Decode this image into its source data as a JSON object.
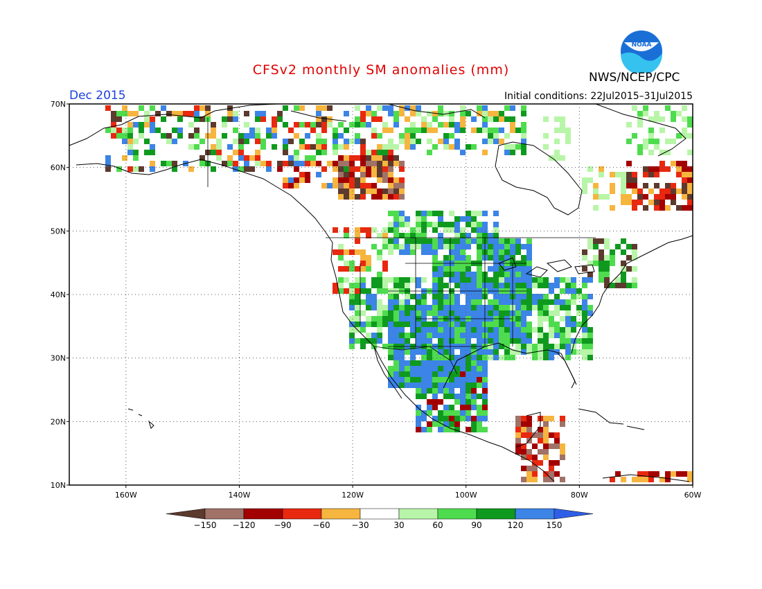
{
  "header": {
    "title": "CFSv2 monthly SM anomalies (mm)",
    "organization": "NWS/NCEP/CPC",
    "period": "Dec 2015",
    "initial_conditions": "Initial conditions: 22Jul2015–31Jul2015",
    "logo_text": "NOAA"
  },
  "map": {
    "lat_labels": [
      "70N",
      "60N",
      "50N",
      "40N",
      "30N",
      "20N",
      "10N"
    ],
    "lon_labels": [
      "160W",
      "140W",
      "120W",
      "100W",
      "80W",
      "60W"
    ],
    "lat_range": [
      10,
      70
    ],
    "lon_range": [
      -170,
      -60
    ],
    "grid": "dotted"
  },
  "colorbar": {
    "labels": [
      "−150",
      "−120",
      "−90",
      "−60",
      "−30",
      "30",
      "60",
      "90",
      "120",
      "150"
    ],
    "colors": [
      "#5c3a2e",
      "#a07268",
      "#a30000",
      "#e8280f",
      "#ff4f1a",
      "#f6b53f",
      "#ffffff",
      "#b8f5a8",
      "#4edc4e",
      "#0f9a1f",
      "#3c84e6",
      "#2f5fe6"
    ]
  },
  "anomaly_regions": [
    {
      "name": "US Southwest / Texas / Mexico north",
      "class": "wet-strong",
      "color": "#3c84e6"
    },
    {
      "name": "Central Plains",
      "class": "wet-strong",
      "color": "#3c84e6"
    },
    {
      "name": "Western Canada interior",
      "class": "dry-strong",
      "color": "#a30000"
    },
    {
      "name": "Eastern Canada / Labrador",
      "class": "dry",
      "color": "#e8280f"
    },
    {
      "name": "Southeast US",
      "class": "wet-light",
      "color": "#b8f5a8"
    }
  ]
}
